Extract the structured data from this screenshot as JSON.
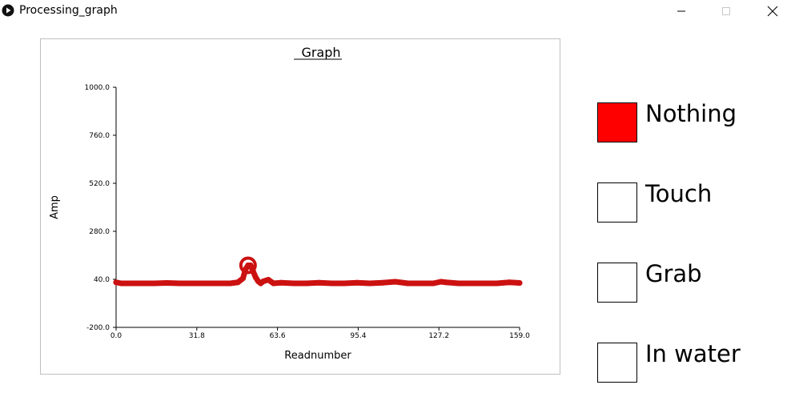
{
  "window": {
    "title": "Processing_graph",
    "controls": [
      "minimize",
      "maximize",
      "close"
    ]
  },
  "chart_data": {
    "type": "line",
    "title": "Graph",
    "xlabel": "Readnumber",
    "ylabel": "Amp",
    "xlim": [
      0,
      159
    ],
    "ylim": [
      -200,
      1000
    ],
    "x_ticks": [
      "0.0",
      "31.8",
      "63.6",
      "95.4",
      "127.2",
      "159.0"
    ],
    "y_ticks": [
      "1000.0",
      "760.0",
      "520.0",
      "280.0",
      "40.0",
      "-200.0"
    ],
    "grid": false,
    "series_color": "#cc1111",
    "series": [
      {
        "x": [
          0,
          2,
          5,
          10,
          15,
          20,
          25,
          30,
          35,
          40,
          45,
          48,
          50,
          51,
          52,
          53,
          54,
          55,
          56,
          57,
          58,
          60,
          62,
          65,
          70,
          75,
          80,
          85,
          90,
          95,
          100,
          105,
          110,
          115,
          120,
          125,
          128,
          130,
          135,
          140,
          145,
          150,
          155,
          159
        ],
        "y": [
          25,
          20,
          20,
          20,
          20,
          22,
          20,
          20,
          20,
          20,
          20,
          25,
          45,
          90,
          110,
          110,
          80,
          50,
          30,
          20,
          30,
          38,
          20,
          23,
          20,
          20,
          23,
          20,
          20,
          23,
          20,
          23,
          28,
          20,
          20,
          20,
          28,
          25,
          20,
          20,
          20,
          20,
          25,
          22
        ]
      }
    ],
    "highlight_point": {
      "x": 52,
      "y": 110
    }
  },
  "legend": [
    {
      "label": "Nothing",
      "fill": "#ff0000",
      "active": true
    },
    {
      "label": "Touch",
      "fill": "#ffffff",
      "active": false
    },
    {
      "label": "Grab",
      "fill": "#ffffff",
      "active": false
    },
    {
      "label": "In water",
      "fill": "#ffffff",
      "active": false
    }
  ]
}
